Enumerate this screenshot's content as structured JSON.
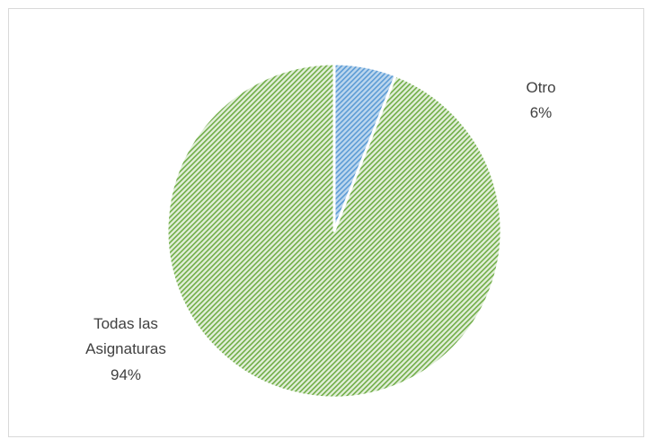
{
  "chart_data": {
    "type": "pie",
    "slices": [
      {
        "category": "Otro",
        "value": 6,
        "percent_label": "6%",
        "fill_color": "#bdd7ee",
        "hatch_color": "#5b9bd5"
      },
      {
        "category": "Todas las Asignaturas",
        "category_lines": [
          "Todas las",
          "Asignaturas"
        ],
        "value": 94,
        "percent_label": "94%",
        "fill_color": "#e2efda",
        "hatch_color": "#70ad47"
      }
    ],
    "start_angle_deg": 0,
    "direction": "clockwise",
    "slice_border_color": "#ffffff",
    "legend": "none"
  }
}
